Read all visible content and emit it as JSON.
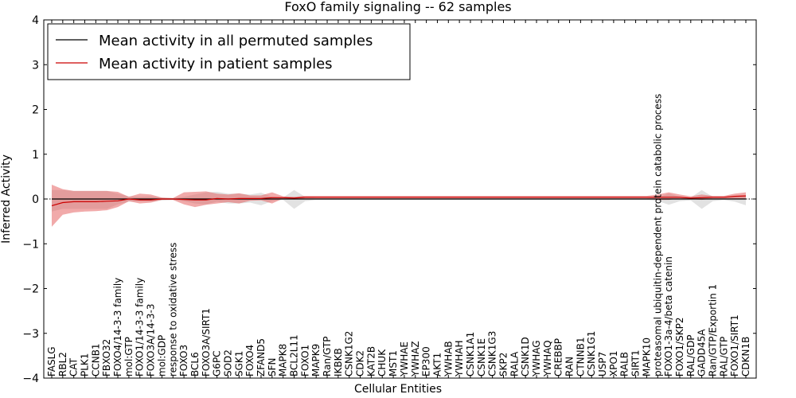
{
  "chart_data": {
    "type": "line",
    "title": "FoxO family signaling -- 62 samples",
    "xlabel": "Cellular Entities",
    "ylabel": "Inferred Activity",
    "ylim": [
      -4,
      4
    ],
    "yticks": [
      -4,
      -3,
      -2,
      -1,
      0,
      1,
      2,
      3,
      4
    ],
    "ytick_labels": [
      "−4",
      "−3",
      "−2",
      "−1",
      "0",
      "1",
      "2",
      "3",
      "4"
    ],
    "legend_position": "upper-left",
    "categories": [
      "FASLG",
      "RBL2",
      "CAT",
      "PLK1",
      "CCNB1",
      "FBXO32",
      "FOXO4/14-3-3 family",
      "mol:GTP",
      "FOXO1/14-3-3 family",
      "FOXO3A/14-3-3",
      "mol:GDP",
      "response to oxidative stress",
      "FOXO3",
      "BCL6",
      "FOXO3A/SIRT1",
      "G6PC",
      "SOD2",
      "SGK1",
      "FOXO4",
      "ZFAND5",
      "SFN",
      "MAPK8",
      "BCL2L11",
      "FOXO1",
      "MAPK9",
      "Ran/GTP",
      "IKBKB",
      "CSNK1G2",
      "CDK2",
      "KAT2B",
      "CHUK",
      "MST1",
      "YWHAE",
      "YWHAZ",
      "EP300",
      "AKT1",
      "YWHAB",
      "YWHAH",
      "CSNK1A1",
      "CSNK1E",
      "CSNK1G3",
      "SKP2",
      "RALA",
      "CSNK1D",
      "YWHAG",
      "YWHAQ",
      "CREBBP",
      "RAN",
      "CTNNB1",
      "CSNK1G1",
      "USP7",
      "XPO1",
      "RALB",
      "SIRT1",
      "MAPK10",
      "proteasomal ubiquitin-dependent protein catabolic process",
      "FOXO1-3a-4/beta catenin",
      "FOXO1/SKP2",
      "RAL/GDP",
      "GADD45A",
      "Ran/GTP/Exportin 1",
      "RAL/GTP",
      "FOXO1/SIRT1",
      "CDKN1B"
    ],
    "series": [
      {
        "name": "Mean activity in all permuted samples",
        "color": "#000000",
        "values": [
          0.0,
          0.0,
          0.0,
          0.0,
          0.0,
          0.0,
          0.0,
          0.0,
          0.0,
          0.0,
          0.0,
          0.0,
          0.0,
          0.0,
          0.0,
          0.0,
          0.0,
          0.0,
          0.0,
          0.0,
          0.0,
          0.0,
          0.0,
          0.0,
          0.0,
          0.0,
          0.0,
          0.0,
          0.0,
          0.0,
          0.0,
          0.0,
          0.0,
          0.0,
          0.0,
          0.0,
          0.0,
          0.0,
          0.0,
          0.0,
          0.0,
          0.0,
          0.0,
          0.0,
          0.0,
          0.0,
          0.0,
          0.0,
          0.0,
          0.0,
          0.0,
          0.0,
          0.0,
          0.0,
          0.0,
          0.0,
          0.0,
          0.0,
          0.0,
          0.0,
          0.0,
          0.0,
          0.0,
          0.0
        ],
        "band_lower": [
          -0.28,
          -0.22,
          -0.22,
          -0.22,
          -0.22,
          -0.22,
          -0.12,
          -0.06,
          -0.05,
          -0.06,
          -0.03,
          -0.02,
          -0.05,
          -0.1,
          -0.12,
          -0.06,
          -0.1,
          -0.1,
          -0.08,
          -0.14,
          -0.05,
          -0.02,
          -0.22,
          -0.05,
          -0.02,
          -0.02,
          -0.02,
          -0.02,
          -0.02,
          -0.02,
          -0.02,
          -0.02,
          -0.02,
          -0.02,
          -0.02,
          -0.02,
          -0.02,
          -0.02,
          -0.02,
          -0.02,
          -0.02,
          -0.02,
          -0.02,
          -0.02,
          -0.02,
          -0.02,
          -0.02,
          -0.02,
          -0.02,
          -0.02,
          -0.02,
          -0.02,
          -0.02,
          -0.02,
          -0.02,
          -0.04,
          -0.13,
          -0.05,
          -0.03,
          -0.22,
          -0.05,
          -0.02,
          -0.06,
          -0.14
        ],
        "band_upper": [
          0.2,
          0.2,
          0.18,
          0.18,
          0.18,
          0.18,
          0.12,
          0.06,
          0.05,
          0.06,
          0.03,
          0.02,
          0.05,
          0.1,
          0.15,
          0.16,
          0.12,
          0.12,
          0.1,
          0.14,
          0.05,
          0.03,
          0.2,
          0.05,
          0.02,
          0.02,
          0.02,
          0.02,
          0.02,
          0.02,
          0.02,
          0.02,
          0.02,
          0.02,
          0.02,
          0.02,
          0.02,
          0.02,
          0.02,
          0.02,
          0.02,
          0.02,
          0.02,
          0.02,
          0.02,
          0.02,
          0.02,
          0.02,
          0.02,
          0.02,
          0.02,
          0.02,
          0.02,
          0.02,
          0.02,
          0.04,
          0.12,
          0.05,
          0.03,
          0.2,
          0.05,
          0.03,
          0.06,
          0.08
        ]
      },
      {
        "name": "Mean activity in patient samples",
        "color": "#cc0000",
        "values": [
          -0.15,
          -0.08,
          -0.06,
          -0.06,
          -0.06,
          -0.05,
          -0.04,
          0.0,
          -0.02,
          -0.02,
          0.0,
          0.0,
          -0.01,
          -0.02,
          -0.02,
          0.01,
          0.0,
          0.01,
          0.01,
          0.01,
          0.03,
          0.03,
          0.02,
          0.04,
          0.04,
          0.04,
          0.04,
          0.04,
          0.04,
          0.04,
          0.04,
          0.04,
          0.04,
          0.04,
          0.04,
          0.04,
          0.04,
          0.04,
          0.04,
          0.04,
          0.04,
          0.04,
          0.04,
          0.04,
          0.04,
          0.04,
          0.04,
          0.04,
          0.04,
          0.04,
          0.04,
          0.04,
          0.04,
          0.04,
          0.04,
          0.04,
          0.04,
          0.04,
          0.02,
          0.03,
          0.04,
          0.04,
          0.06,
          0.07
        ],
        "band_lower": [
          -0.62,
          -0.35,
          -0.3,
          -0.28,
          -0.27,
          -0.25,
          -0.18,
          -0.05,
          -0.1,
          -0.08,
          -0.02,
          -0.02,
          -0.12,
          -0.18,
          -0.13,
          -0.1,
          -0.07,
          -0.1,
          -0.04,
          -0.03,
          -0.1,
          0.01,
          -0.01,
          0.01,
          0.01,
          0.01,
          0.01,
          0.01,
          0.01,
          0.01,
          0.01,
          0.01,
          0.01,
          0.01,
          0.01,
          0.01,
          0.01,
          0.01,
          0.01,
          0.01,
          0.01,
          0.01,
          0.01,
          0.01,
          0.01,
          0.01,
          0.01,
          0.01,
          0.01,
          0.01,
          0.01,
          0.01,
          0.01,
          0.01,
          0.01,
          -0.02,
          -0.02,
          0.01,
          0.0,
          -0.02,
          0.01,
          0.01,
          0.0,
          0.0
        ],
        "band_upper": [
          0.32,
          0.22,
          0.18,
          0.18,
          0.18,
          0.18,
          0.16,
          0.05,
          0.12,
          0.1,
          0.03,
          0.02,
          0.15,
          0.16,
          0.17,
          0.12,
          0.1,
          0.13,
          0.08,
          0.08,
          0.15,
          0.06,
          0.05,
          0.07,
          0.07,
          0.07,
          0.07,
          0.07,
          0.07,
          0.07,
          0.07,
          0.07,
          0.07,
          0.07,
          0.07,
          0.07,
          0.07,
          0.07,
          0.07,
          0.07,
          0.07,
          0.07,
          0.07,
          0.07,
          0.07,
          0.07,
          0.07,
          0.07,
          0.07,
          0.07,
          0.07,
          0.07,
          0.07,
          0.07,
          0.07,
          0.1,
          0.15,
          0.1,
          0.06,
          0.1,
          0.07,
          0.07,
          0.12,
          0.15
        ]
      }
    ]
  }
}
